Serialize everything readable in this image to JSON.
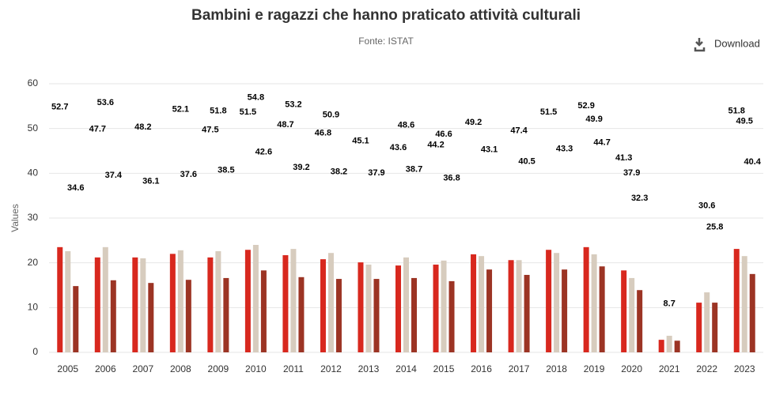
{
  "chart_data": {
    "type": "bar",
    "title": "Bambini e ragazzi che hanno praticato attività culturali",
    "subtitle": "Fonte: ISTAT",
    "y_label": "Values",
    "categories": [
      "2005",
      "2006",
      "2007",
      "2008",
      "2009",
      "2010",
      "2011",
      "2012",
      "2013",
      "2014",
      "2015",
      "2016",
      "2017",
      "2018",
      "2019",
      "2020",
      "2021",
      "2022",
      "2023"
    ],
    "series": [
      {
        "color": "#d8281e",
        "values": [
          23.5,
          21.2,
          21.2,
          22.0,
          21.2,
          22.9,
          21.7,
          20.8,
          20.1,
          19.4,
          19.6,
          21.9,
          20.6,
          22.9,
          23.5,
          18.3,
          2.8,
          11.1,
          23.1
        ],
        "labels": [
          52.7,
          47.7,
          null,
          null,
          47.5,
          51.5,
          48.7,
          46.8,
          45.1,
          43.6,
          44.2,
          49.2,
          null,
          51.5,
          52.9,
          41.3,
          null,
          null,
          51.8
        ]
      },
      {
        "color": "#d7ccbe",
        "values": [
          22.6,
          23.5,
          21.0,
          22.8,
          22.6,
          24.0,
          23.1,
          22.2,
          19.6,
          21.2,
          20.5,
          21.5,
          20.6,
          22.2,
          21.9,
          16.6,
          3.7,
          13.4,
          21.5
        ],
        "labels": [
          null,
          53.6,
          48.2,
          52.1,
          51.8,
          54.8,
          53.2,
          50.9,
          null,
          48.6,
          46.6,
          null,
          47.4,
          null,
          49.9,
          37.9,
          8.7,
          30.6,
          49.5
        ]
      },
      {
        "color": "#9c3424",
        "values": [
          14.8,
          16.1,
          15.5,
          16.2,
          16.6,
          18.3,
          16.8,
          16.4,
          16.4,
          16.6,
          15.9,
          18.5,
          17.3,
          18.5,
          19.2,
          13.9,
          2.6,
          11.1,
          17.5
        ],
        "labels": [
          34.6,
          37.4,
          36.1,
          37.6,
          38.5,
          42.6,
          39.2,
          38.2,
          37.9,
          38.7,
          36.8,
          43.1,
          40.5,
          43.3,
          44.7,
          32.3,
          null,
          25.8,
          40.4
        ]
      }
    ],
    "ylim": [
      0,
      60
    ],
    "yticks": [
      0,
      10,
      20,
      30,
      40,
      50,
      60
    ],
    "grid": true
  },
  "toolbar": {
    "download": "Download"
  }
}
